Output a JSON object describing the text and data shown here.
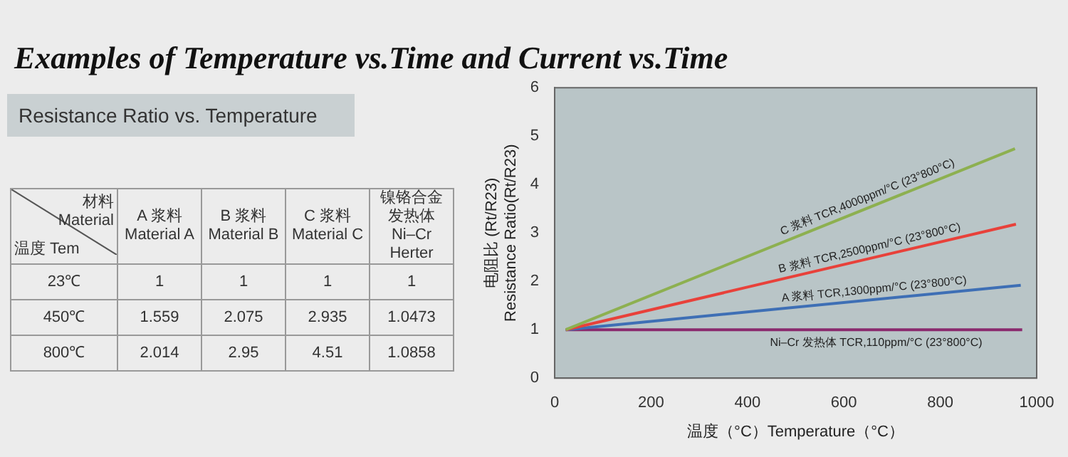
{
  "chart_data": {
    "type": "line",
    "title": "Examples of Temperature vs.Time and Current vs.Time",
    "subtitle": "Resistance Ratio vs. Temperature",
    "xlabel": "温度（°C）Temperature（°C）",
    "ylabel": "电阻比 (Rt/R23)\nResistance Ratio(Rt/R23)",
    "xlim": [
      0,
      1000
    ],
    "xticks": [
      0,
      200,
      400,
      600,
      800,
      1000
    ],
    "ylim": [
      0,
      6
    ],
    "yticks": [
      0,
      1,
      2,
      3,
      4,
      5,
      6
    ],
    "grid": false,
    "legend": false,
    "marker": "none",
    "line_style": "solid",
    "series": [
      {
        "color": "#8db050",
        "x": [
          23,
          955
        ],
        "values": [
          1,
          4.74
        ]
      },
      {
        "color": "#e8413a",
        "x": [
          23,
          957
        ],
        "values": [
          1,
          3.18
        ]
      },
      {
        "color": "#3e6fb5",
        "x": [
          23,
          967
        ],
        "values": [
          1,
          1.92
        ]
      },
      {
        "color": "#8a2a6e",
        "x": [
          23,
          970
        ],
        "values": [
          1,
          1.0
        ]
      }
    ],
    "annotations": [
      "C 浆料 TCR,4000ppm/°C (23°800°C)",
      "B 浆料 TCR,2500ppm/°C (23°800°C)",
      "A 浆料 TCR,1300ppm/°C (23°800°C)",
      "Ni–Cr 发热体 TCR,110ppm/°C (23°800°C)",
      "材料\nMaterial",
      "温度 Tem",
      "A 浆料\nMaterial A",
      "B 浆料\nMaterial B",
      "C 浆料\nMaterial C",
      "镍铬合金发热体\nNi–Cr Herter",
      "23℃",
      "1",
      "1",
      "1",
      "1",
      "450℃",
      "1.559",
      "2.075",
      "2.935",
      "1.0473",
      "800℃",
      "2.014",
      "2.95",
      "4.51",
      "1.0858"
    ]
  }
}
